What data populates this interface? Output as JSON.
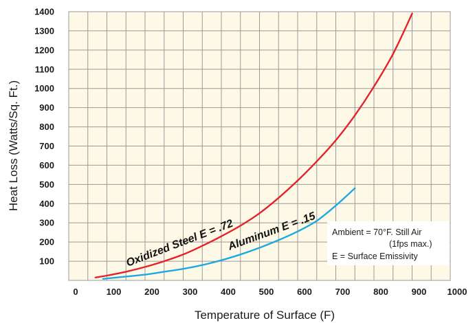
{
  "chart_data": {
    "type": "line",
    "xlabel": "Temperature of Surface (F)",
    "ylabel": "Heat Loss (Watts/Sq. Ft.)",
    "xlim": [
      0,
      1000
    ],
    "ylim": [
      0,
      1400
    ],
    "x_ticks": [
      "0",
      "100",
      "200",
      "300",
      "400",
      "500",
      "600",
      "700",
      "800",
      "900",
      "1000"
    ],
    "y_ticks": [
      "100",
      "200",
      "300",
      "400",
      "500",
      "600",
      "700",
      "800",
      "900",
      "1000",
      "1100",
      "1200",
      "1300",
      "1400"
    ],
    "grid": true,
    "series": [
      {
        "name": "Oxidized Steel E = .72",
        "color": "#e3232b",
        "x": [
          70,
          100,
          150,
          200,
          250,
          300,
          350,
          400,
          450,
          500,
          550,
          600,
          650,
          700,
          750,
          800,
          850,
          900
        ],
        "y": [
          15,
          25,
          45,
          70,
          100,
          135,
          180,
          230,
          285,
          350,
          430,
          520,
          620,
          730,
          860,
          1010,
          1180,
          1390
        ]
      },
      {
        "name": "Aluminum  E = .15",
        "color": "#1ea9e0",
        "x": [
          90,
          150,
          200,
          250,
          300,
          350,
          400,
          450,
          500,
          550,
          600,
          650,
          700,
          750
        ],
        "y": [
          8,
          20,
          30,
          45,
          60,
          80,
          105,
          135,
          170,
          210,
          255,
          310,
          390,
          480
        ]
      }
    ],
    "annotation": [
      "Ambient = 70°F. Still Air",
      "(1fps max.)",
      "E = Surface Emissivity"
    ],
    "colors": {
      "plot_background": "#fdf9e6",
      "grid": "#9a9a9a"
    }
  }
}
